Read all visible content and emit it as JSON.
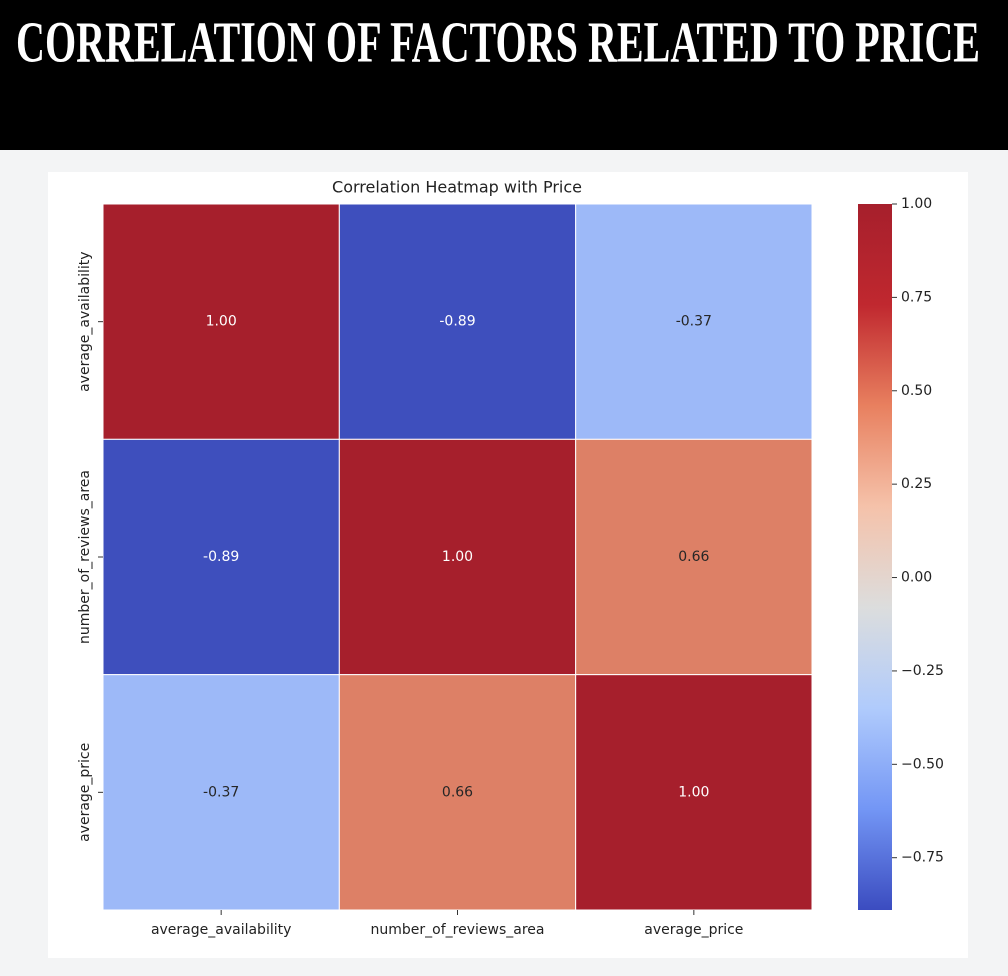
{
  "header": {
    "title": "CORRELATION OF FACTORS RELATED TO PRICE"
  },
  "chart_data": {
    "type": "heatmap",
    "title": "Correlation Heatmap with Price",
    "categories": [
      "average_availability",
      "number_of_reviews_area",
      "average_price"
    ],
    "values": [
      [
        1.0,
        -0.89,
        -0.37
      ],
      [
        -0.89,
        1.0,
        0.66
      ],
      [
        -0.37,
        0.66,
        1.0
      ]
    ],
    "value_labels": [
      [
        "1.00",
        "-0.89",
        "-0.37"
      ],
      [
        "-0.89",
        "1.00",
        "0.66"
      ],
      [
        "-0.37",
        "0.66",
        "1.00"
      ]
    ],
    "colors": [
      [
        "#a61f2c",
        "#3e4fbd",
        "#9db9f8"
      ],
      [
        "#3e4fbd",
        "#a61f2c",
        "#dd8066"
      ],
      [
        "#9db9f8",
        "#dd8066",
        "#a61f2c"
      ]
    ],
    "colorbar_colors": [
      "#3b4cc0",
      "#7396f5",
      "#b0cbfc",
      "#dcdddd",
      "#f5c2aa",
      "#e8805f",
      "#c0282f",
      "#a61f2c"
    ],
    "clim": [
      -0.89,
      1.0
    ],
    "cticks": [
      {
        "value": 1.0,
        "label": "1.00"
      },
      {
        "value": 0.75,
        "label": "0.75"
      },
      {
        "value": 0.5,
        "label": "0.50"
      },
      {
        "value": 0.25,
        "label": "0.25"
      },
      {
        "value": 0,
        "label": "0.00"
      },
      {
        "value": -0.25,
        "label": "−0.25"
      },
      {
        "value": -0.5,
        "label": "−0.50"
      },
      {
        "value": -0.75,
        "label": "−0.75"
      }
    ]
  }
}
